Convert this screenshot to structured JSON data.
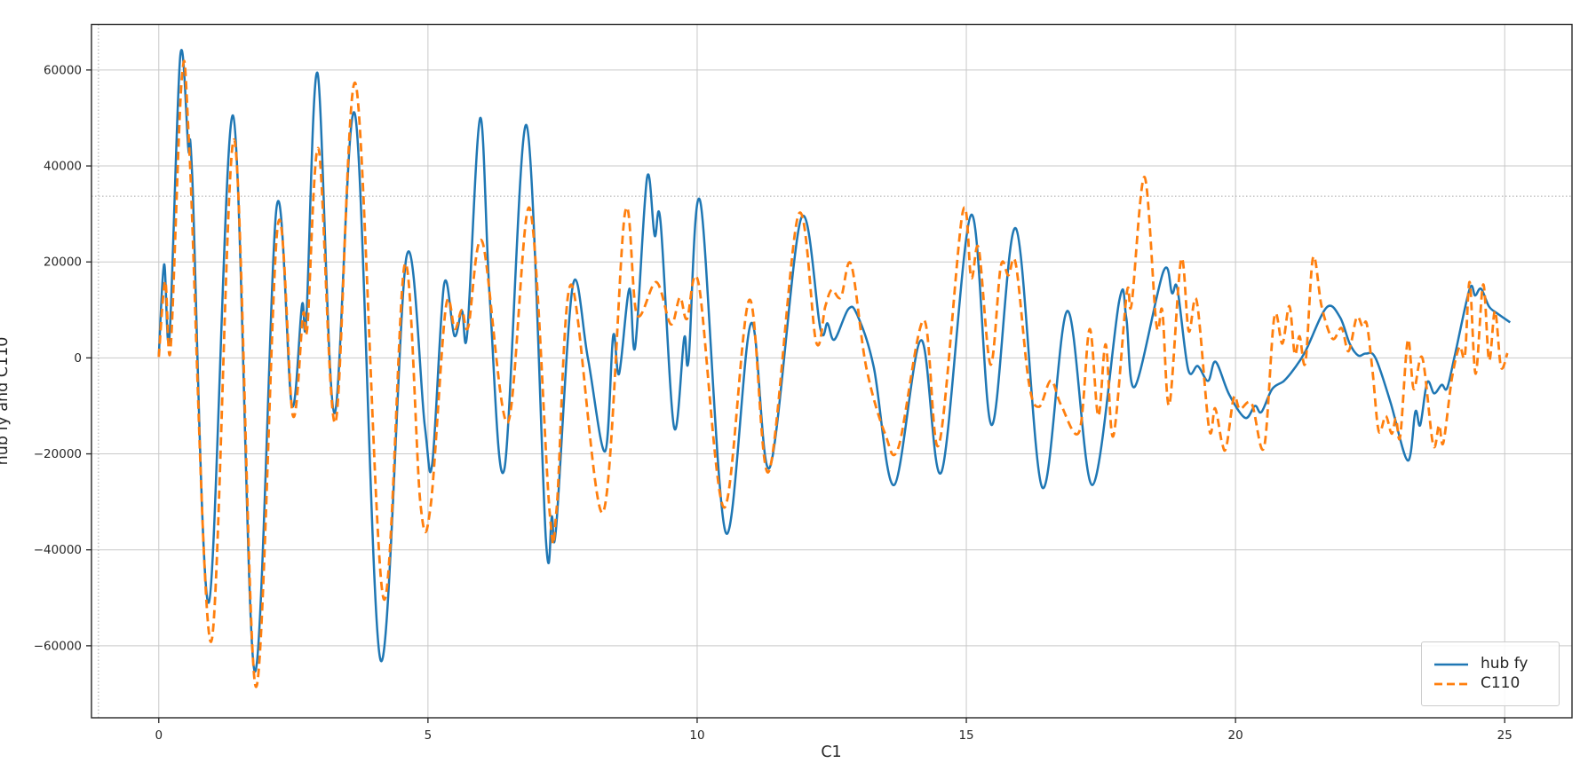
{
  "figure": {
    "background": "#ffffff",
    "spine_color": "#262626",
    "tick_label_color": "#262626",
    "tick_font_size": 13.5
  },
  "chart_data": {
    "type": "line",
    "title": "",
    "xlabel": "C1",
    "ylabel": "hub fy and C110",
    "xlim": [
      -1.25,
      26.25
    ],
    "ylim": [
      -75000,
      69500
    ],
    "x_ticks": [
      0,
      5,
      10,
      15,
      20,
      25
    ],
    "x_tick_labels": [
      "0",
      "5",
      "10",
      "15",
      "20",
      "25"
    ],
    "y_ticks": [
      -60000,
      -40000,
      -20000,
      0,
      20000,
      40000,
      60000
    ],
    "y_tick_labels": [
      "−60000",
      "−40000",
      "−20000",
      "0",
      "20000",
      "40000",
      "60000"
    ],
    "grid": true,
    "grid_color": "#c9c9c9",
    "dotted_guides": {
      "hline_y": 33700,
      "vline_x": -1.12,
      "color": "#a8a8a8"
    },
    "legend_position": "lower right",
    "series": [
      {
        "name": "hub fy",
        "color": "#1f77b4",
        "style": "solid",
        "points": [
          [
            0,
            500
          ],
          [
            0.1,
            19500
          ],
          [
            0.2,
            4500
          ],
          [
            0.4,
            63000
          ],
          [
            0.55,
            43500
          ],
          [
            0.62,
            38000
          ],
          [
            0.93,
            -51000
          ],
          [
            1.38,
            50500
          ],
          [
            1.78,
            -65300
          ],
          [
            2.19,
            31500
          ],
          [
            2.47,
            -9800
          ],
          [
            2.66,
            11000
          ],
          [
            2.74,
            8000
          ],
          [
            2.95,
            59300
          ],
          [
            3.26,
            -11500
          ],
          [
            3.65,
            50500
          ],
          [
            4.12,
            -63000
          ],
          [
            4.6,
            21000
          ],
          [
            4.94,
            -14000
          ],
          [
            5.08,
            -22000
          ],
          [
            5.3,
            15300
          ],
          [
            5.49,
            4600
          ],
          [
            5.63,
            9800
          ],
          [
            5.73,
            5200
          ],
          [
            5.97,
            50000
          ],
          [
            6.15,
            12000
          ],
          [
            6.42,
            -23200
          ],
          [
            6.83,
            48500
          ],
          [
            7.19,
            -37700
          ],
          [
            7.3,
            -33000
          ],
          [
            7.38,
            -35500
          ],
          [
            7.69,
            15000
          ],
          [
            7.97,
            0
          ],
          [
            8.29,
            -19500
          ],
          [
            8.44,
            4600
          ],
          [
            8.55,
            -3300
          ],
          [
            8.74,
            14400
          ],
          [
            8.85,
            2300
          ],
          [
            9.07,
            37600
          ],
          [
            9.21,
            25500
          ],
          [
            9.32,
            28400
          ],
          [
            9.57,
            -14400
          ],
          [
            9.76,
            4200
          ],
          [
            9.84,
            -500
          ],
          [
            10.06,
            32500
          ],
          [
            10.53,
            -36400
          ],
          [
            11.0,
            7200
          ],
          [
            11.35,
            -22800
          ],
          [
            11.93,
            29000
          ],
          [
            12.29,
            6000
          ],
          [
            12.42,
            7200
          ],
          [
            12.55,
            3800
          ],
          [
            12.81,
            10200
          ],
          [
            12.98,
            8800
          ],
          [
            13.28,
            -1900
          ],
          [
            13.66,
            -26500
          ],
          [
            14.16,
            3700
          ],
          [
            14.54,
            -23700
          ],
          [
            15.09,
            29800
          ],
          [
            15.47,
            -14000
          ],
          [
            15.92,
            27000
          ],
          [
            16.41,
            -27000
          ],
          [
            16.88,
            9800
          ],
          [
            17.34,
            -26500
          ],
          [
            17.84,
            11900
          ],
          [
            17.97,
            8400
          ],
          [
            18.13,
            -6000
          ],
          [
            18.66,
            18000
          ],
          [
            18.82,
            13500
          ],
          [
            18.92,
            14400
          ],
          [
            19.12,
            -2400
          ],
          [
            19.3,
            -1700
          ],
          [
            19.49,
            -4800
          ],
          [
            19.63,
            -800
          ],
          [
            19.88,
            -7600
          ],
          [
            20.18,
            -12500
          ],
          [
            20.36,
            -10000
          ],
          [
            20.48,
            -11300
          ],
          [
            20.68,
            -6500
          ],
          [
            20.9,
            -4800
          ],
          [
            21.08,
            -2400
          ],
          [
            21.3,
            1400
          ],
          [
            21.69,
            10500
          ],
          [
            21.94,
            8500
          ],
          [
            22.12,
            3000
          ],
          [
            22.28,
            500
          ],
          [
            22.42,
            900
          ],
          [
            22.6,
            0
          ],
          [
            22.88,
            -9300
          ],
          [
            23.2,
            -21400
          ],
          [
            23.34,
            -11200
          ],
          [
            23.43,
            -14000
          ],
          [
            23.56,
            -5100
          ],
          [
            23.69,
            -7400
          ],
          [
            23.83,
            -5600
          ],
          [
            23.93,
            -6300
          ],
          [
            24.08,
            900
          ],
          [
            24.35,
            14400
          ],
          [
            24.45,
            13000
          ],
          [
            24.56,
            14400
          ],
          [
            24.71,
            10700
          ],
          [
            24.86,
            9300
          ],
          [
            25.1,
            7400
          ]
        ]
      },
      {
        "name": "C110",
        "color": "#ff7f0e",
        "style": "dashed",
        "points": [
          [
            0,
            200
          ],
          [
            0.12,
            16000
          ],
          [
            0.22,
            2000
          ],
          [
            0.43,
            58500
          ],
          [
            0.57,
            43000
          ],
          [
            0.97,
            -59200
          ],
          [
            1.4,
            45500
          ],
          [
            1.8,
            -68500
          ],
          [
            2.21,
            27500
          ],
          [
            2.49,
            -12000
          ],
          [
            2.68,
            9000
          ],
          [
            2.76,
            6500
          ],
          [
            2.97,
            43500
          ],
          [
            3.28,
            -13500
          ],
          [
            3.66,
            57000
          ],
          [
            4.17,
            -50000
          ],
          [
            4.57,
            19500
          ],
          [
            4.86,
            -30400
          ],
          [
            5.05,
            -30800
          ],
          [
            5.33,
            10400
          ],
          [
            5.5,
            6000
          ],
          [
            5.63,
            10000
          ],
          [
            5.75,
            6500
          ],
          [
            6.01,
            24200
          ],
          [
            6.48,
            -13500
          ],
          [
            6.89,
            31200
          ],
          [
            7.26,
            -32200
          ],
          [
            7.39,
            -31500
          ],
          [
            7.66,
            15300
          ],
          [
            8.25,
            -32200
          ],
          [
            8.66,
            30200
          ],
          [
            8.88,
            9000
          ],
          [
            9.24,
            15800
          ],
          [
            9.51,
            7000
          ],
          [
            9.68,
            12600
          ],
          [
            9.81,
            8100
          ],
          [
            10.03,
            15300
          ],
          [
            10.5,
            -31200
          ],
          [
            10.97,
            12100
          ],
          [
            11.33,
            -23700
          ],
          [
            11.88,
            29800
          ],
          [
            12.21,
            3300
          ],
          [
            12.38,
            10700
          ],
          [
            12.5,
            14200
          ],
          [
            12.67,
            12600
          ],
          [
            12.86,
            19500
          ],
          [
            13.14,
            -1900
          ],
          [
            13.49,
            -15800
          ],
          [
            13.74,
            -18600
          ],
          [
            14.21,
            7900
          ],
          [
            14.49,
            -18100
          ],
          [
            14.93,
            30200
          ],
          [
            15.09,
            16700
          ],
          [
            15.23,
            22800
          ],
          [
            15.45,
            -1400
          ],
          [
            15.64,
            19100
          ],
          [
            15.78,
            17200
          ],
          [
            15.92,
            19500
          ],
          [
            16.16,
            -5100
          ],
          [
            16.35,
            -10200
          ],
          [
            16.57,
            -4700
          ],
          [
            16.76,
            -9800
          ],
          [
            17.1,
            -15300
          ],
          [
            17.29,
            6000
          ],
          [
            17.45,
            -12100
          ],
          [
            17.59,
            2800
          ],
          [
            17.73,
            -16300
          ],
          [
            17.98,
            13500
          ],
          [
            18.07,
            11200
          ],
          [
            18.31,
            37700
          ],
          [
            18.53,
            7000
          ],
          [
            18.64,
            9800
          ],
          [
            18.77,
            -9800
          ],
          [
            18.99,
            20500
          ],
          [
            19.13,
            5600
          ],
          [
            19.28,
            11800
          ],
          [
            19.51,
            -14800
          ],
          [
            19.62,
            -10500
          ],
          [
            19.75,
            -17800
          ],
          [
            19.83,
            -18500
          ],
          [
            19.97,
            -8200
          ],
          [
            20.08,
            -10700
          ],
          [
            20.3,
            -9500
          ],
          [
            20.53,
            -18600
          ],
          [
            20.72,
            8500
          ],
          [
            20.87,
            3000
          ],
          [
            21.0,
            10800
          ],
          [
            21.1,
            800
          ],
          [
            21.19,
            4500
          ],
          [
            21.3,
            -900
          ],
          [
            21.44,
            20900
          ],
          [
            21.6,
            10700
          ],
          [
            21.8,
            4000
          ],
          [
            21.97,
            6200
          ],
          [
            22.1,
            1400
          ],
          [
            22.25,
            8400
          ],
          [
            22.36,
            6500
          ],
          [
            22.44,
            7000
          ],
          [
            22.55,
            -3300
          ],
          [
            22.66,
            -15300
          ],
          [
            22.79,
            -12100
          ],
          [
            22.9,
            -15800
          ],
          [
            22.98,
            -12600
          ],
          [
            23.06,
            -16300
          ],
          [
            23.2,
            3700
          ],
          [
            23.31,
            -6500
          ],
          [
            23.47,
            0
          ],
          [
            23.67,
            -18100
          ],
          [
            23.78,
            -14000
          ],
          [
            23.86,
            -17700
          ],
          [
            24.02,
            -4200
          ],
          [
            24.16,
            2300
          ],
          [
            24.26,
            500
          ],
          [
            24.35,
            15800
          ],
          [
            24.46,
            -3300
          ],
          [
            24.6,
            15300
          ],
          [
            24.71,
            -500
          ],
          [
            24.82,
            9800
          ],
          [
            24.93,
            -1900
          ],
          [
            25.05,
            1000
          ]
        ]
      }
    ]
  }
}
